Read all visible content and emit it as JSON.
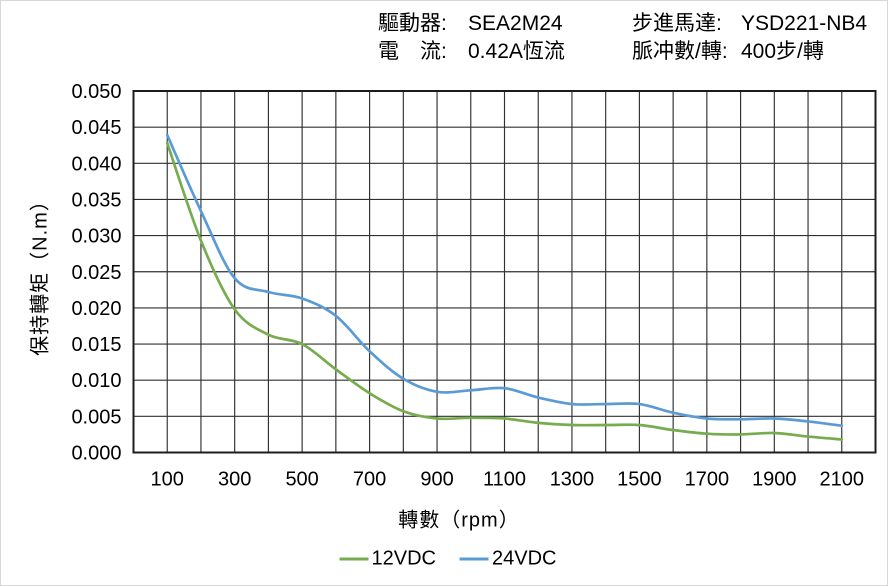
{
  "header": {
    "driver": {
      "label": "驅動器:",
      "value": "SEA2M24"
    },
    "current": {
      "label": "電　流:",
      "value": "0.42A恆流"
    },
    "motor": {
      "label": "步進馬達:",
      "value": "YSD221-NB4"
    },
    "pulses": {
      "label": "脈冲數/轉:",
      "value": "400步/轉"
    }
  },
  "chart_data": {
    "type": "line",
    "title": "",
    "xlabel": "轉數（rpm）",
    "ylabel": "保持轉矩（N.m）",
    "x": [
      100,
      200,
      300,
      400,
      500,
      600,
      700,
      800,
      900,
      1000,
      1100,
      1200,
      1300,
      1400,
      1500,
      1600,
      1700,
      1800,
      1900,
      2000,
      2100
    ],
    "series": [
      {
        "name": "12VDC",
        "color": "#76AC4E",
        "values": [
          0.0428,
          0.0293,
          0.0198,
          0.0163,
          0.015,
          0.0115,
          0.0082,
          0.0057,
          0.0047,
          0.0048,
          0.0047,
          0.0041,
          0.0038,
          0.0038,
          0.0038,
          0.0031,
          0.0026,
          0.0025,
          0.0027,
          0.0022,
          0.0018
        ]
      },
      {
        "name": "24VDC",
        "color": "#5B9BD5",
        "values": [
          0.0439,
          0.0334,
          0.0241,
          0.0222,
          0.0213,
          0.0189,
          0.014,
          0.0102,
          0.0084,
          0.0086,
          0.0089,
          0.0076,
          0.0067,
          0.0067,
          0.0067,
          0.0055,
          0.0047,
          0.0046,
          0.0047,
          0.0043,
          0.0037
        ]
      }
    ],
    "xlim": [
      0,
      2200
    ],
    "ylim": [
      0,
      0.05
    ],
    "x_grid_step": 100,
    "y_grid_step": 0.005,
    "x_ticks": [
      "100",
      "300",
      "500",
      "700",
      "900",
      "1100",
      "1300",
      "1500",
      "1700",
      "1900",
      "2100"
    ],
    "y_ticks": [
      "0.000",
      "0.005",
      "0.010",
      "0.015",
      "0.020",
      "0.025",
      "0.030",
      "0.035",
      "0.040",
      "0.045",
      "0.050"
    ],
    "grid": "on",
    "legend_position": "bottom"
  }
}
